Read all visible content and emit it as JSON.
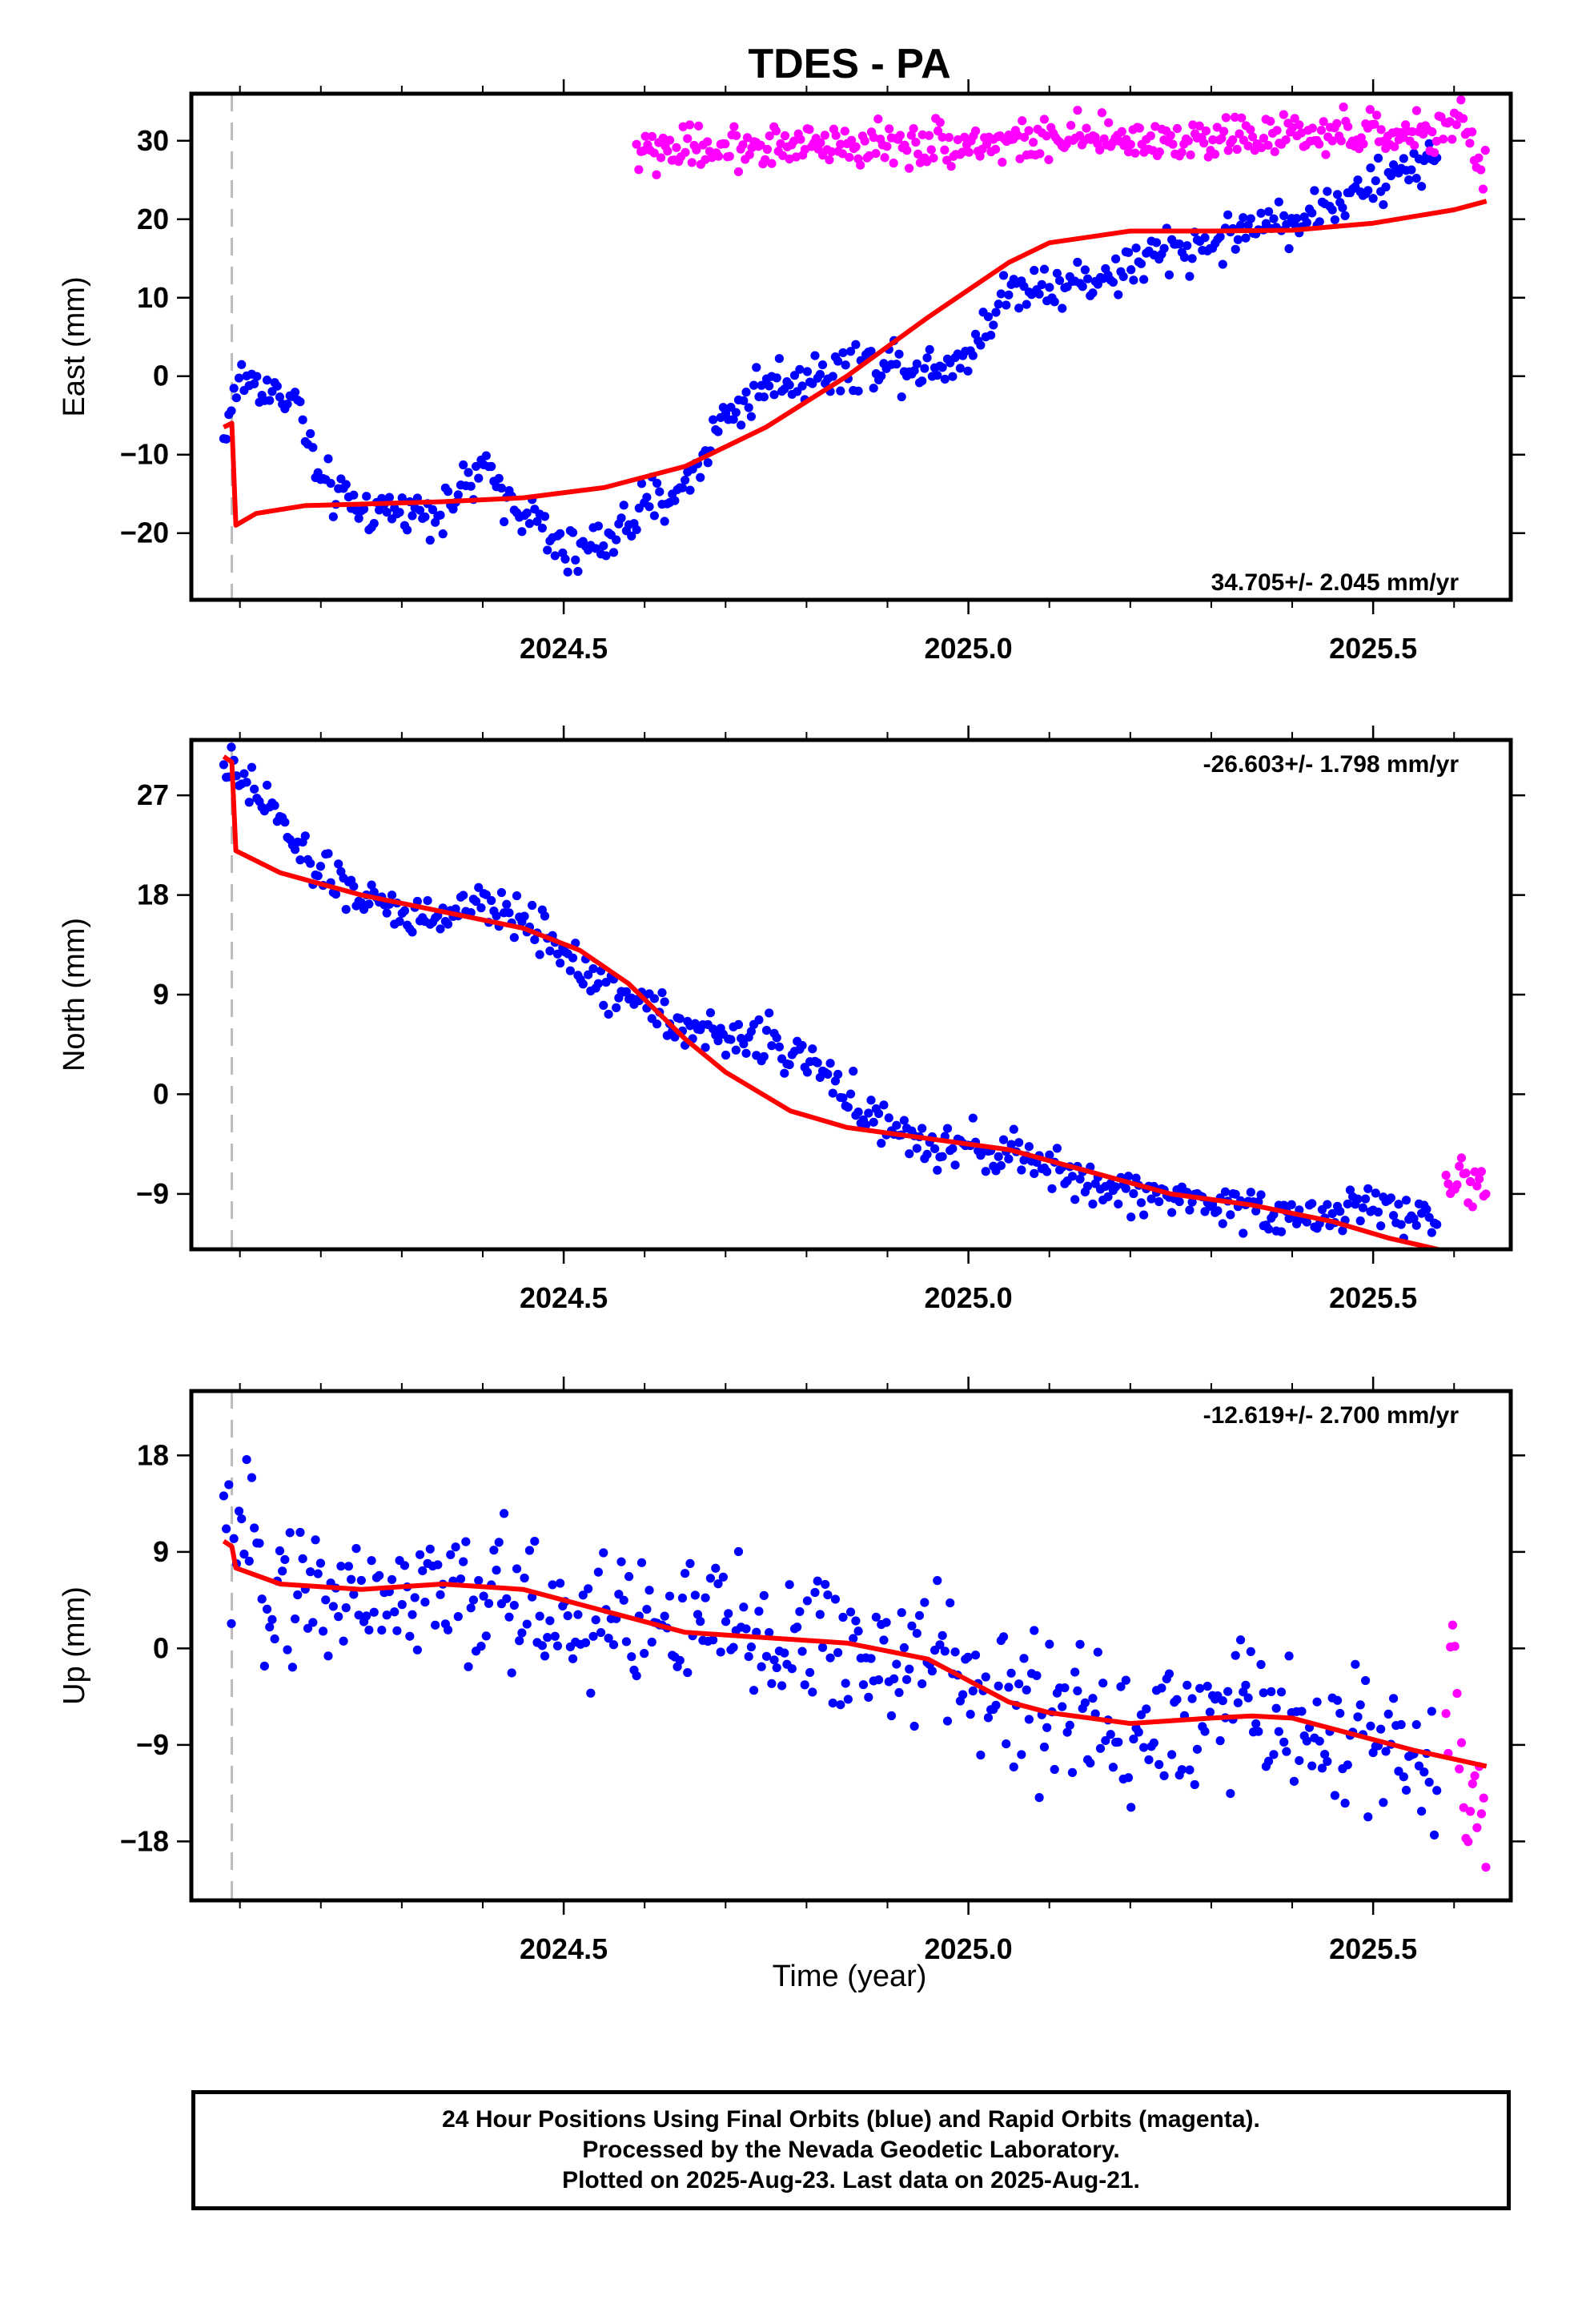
{
  "title": "TDES - PA",
  "xlabel": "Time (year)",
  "colors": {
    "final_orbits": "#0000ff",
    "rapid_orbits": "#ff00ff",
    "model": "#ff0000",
    "dashed_marker": "#bbbbbb",
    "frame": "#000000"
  },
  "caption": {
    "line1": "24 Hour Positions Using Final Orbits (blue) and Rapid Orbits (magenta).",
    "line2": "Processed by the Nevada Geodetic Laboratory.",
    "line3": "Plotted on 2025-Aug-23. Last data on 2025-Aug-21."
  },
  "chart_data": [
    {
      "type": "scatter",
      "component": "East",
      "ylabel": "East (mm)",
      "velocity": "34.705+/- 2.045 mm/yr",
      "velocity_position": "bottom-right",
      "xlim": [
        2024.04,
        2025.67
      ],
      "ylim": [
        -28.5,
        36
      ],
      "xticks": [
        2024.5,
        2025.0,
        2025.5
      ],
      "xtick_labels": [
        "2024.5",
        "2025.0",
        "2025.5"
      ],
      "yticks": [
        30,
        20,
        10,
        0,
        -10,
        -20
      ],
      "ytick_labels": [
        "30",
        "20",
        "10",
        "0",
        "−10",
        "−20"
      ],
      "offset_marker_x": 2024.09,
      "final_orbits_trend": {
        "x": [
          2024.08,
          2024.1,
          2024.14,
          2024.17,
          2024.2,
          2024.25,
          2024.3,
          2024.35,
          2024.4,
          2024.43,
          2024.47,
          2024.5,
          2024.55,
          2024.6,
          2024.65,
          2024.7,
          2024.75,
          2024.8,
          2024.85,
          2024.9,
          2024.95,
          2025.0,
          2025.05,
          2025.1,
          2025.15,
          2025.2,
          2025.25,
          2025.3,
          2025.35,
          2025.4,
          2025.45,
          2025.5,
          2025.55,
          2025.58
        ],
        "y": [
          -8,
          0,
          -2,
          -3,
          -14,
          -17,
          -17,
          -17,
          -12,
          -15,
          -19,
          -23,
          -21,
          -17,
          -14,
          -5,
          -1,
          0,
          1,
          2,
          1,
          3,
          11,
          12,
          12,
          14,
          16,
          17,
          19,
          20,
          22,
          24,
          27,
          27
        ]
      },
      "rapid_orbits_trend": {
        "x": [
          2024.59,
          2025.6,
          2025.61,
          2025.62,
          2025.63,
          2025.64
        ],
        "y": [
          29,
          31,
          33,
          30,
          27,
          26
        ]
      },
      "model": {
        "x": [
          2024.08,
          2024.09,
          2024.095,
          2024.12,
          2024.18,
          2024.25,
          2024.35,
          2024.45,
          2024.55,
          2024.65,
          2024.75,
          2024.85,
          2024.95,
          2025.05,
          2025.1,
          2025.2,
          2025.3,
          2025.4,
          2025.5,
          2025.6,
          2025.64
        ],
        "y": [
          -6.5,
          -6,
          -19,
          -17.5,
          -16.5,
          -16.3,
          -16,
          -15.5,
          -14.2,
          -11.5,
          -6.5,
          0,
          7.5,
          14.5,
          17,
          18.5,
          18.5,
          18.6,
          19.5,
          21.2,
          22.3
        ]
      }
    },
    {
      "type": "scatter",
      "component": "North",
      "ylabel": "North (mm)",
      "velocity": "-26.603+/- 1.798 mm/yr",
      "velocity_position": "top-right",
      "xlim": [
        2024.04,
        2025.67
      ],
      "ylim": [
        -14,
        32
      ],
      "xticks": [
        2024.5,
        2025.0,
        2025.5
      ],
      "xtick_labels": [
        "2024.5",
        "2025.0",
        "2025.5"
      ],
      "yticks": [
        27,
        18,
        9,
        0,
        -9
      ],
      "ytick_labels": [
        "27",
        "18",
        "9",
        "0",
        "−9"
      ],
      "offset_marker_x": 2024.09,
      "final_orbits_trend": {
        "x": [
          2024.08,
          2024.1,
          2024.14,
          2024.17,
          2024.2,
          2024.25,
          2024.3,
          2024.35,
          2024.4,
          2024.45,
          2024.5,
          2024.55,
          2024.6,
          2024.65,
          2024.7,
          2024.75,
          2024.8,
          2024.85,
          2024.9,
          2024.95,
          2025.0,
          2025.05,
          2025.1,
          2025.15,
          2025.2,
          2025.25,
          2025.3,
          2025.35,
          2025.4,
          2025.45,
          2025.5,
          2025.55,
          2025.58
        ],
        "y": [
          30,
          28,
          26,
          22,
          20,
          18,
          16,
          16,
          17,
          16,
          13,
          9,
          9,
          6,
          5,
          5,
          3,
          0,
          -3,
          -5,
          -5,
          -5,
          -7,
          -8,
          -9,
          -9,
          -10,
          -10,
          -11,
          -11,
          -10,
          -11,
          -11
        ]
      },
      "rapid_orbits_trend": {
        "x": [
          2025.59,
          2025.6,
          2025.61,
          2025.62,
          2025.63,
          2025.64
        ],
        "y": [
          -7,
          -8,
          -8,
          -9,
          -7,
          -9
        ]
      },
      "model": {
        "x": [
          2024.08,
          2024.09,
          2024.095,
          2024.15,
          2024.25,
          2024.35,
          2024.45,
          2024.52,
          2024.58,
          2024.65,
          2024.7,
          2024.78,
          2024.85,
          2024.95,
          2025.05,
          2025.15,
          2025.25,
          2025.35,
          2025.45,
          2025.52,
          2025.58
        ],
        "y": [
          30.5,
          30,
          22,
          20,
          18,
          16.5,
          15,
          13,
          10,
          5,
          2,
          -1.5,
          -3,
          -4,
          -5,
          -7,
          -9,
          -10,
          -11.5,
          -13,
          -14
        ]
      }
    },
    {
      "type": "scatter",
      "component": "Up",
      "ylabel": "Up (mm)",
      "velocity": "-12.619+/- 2.700 mm/yr",
      "velocity_position": "top-right",
      "xlim": [
        2024.04,
        2025.67
      ],
      "ylim": [
        -23.5,
        24
      ],
      "xticks": [
        2024.5,
        2025.0,
        2025.5
      ],
      "xtick_labels": [
        "2024.5",
        "2025.0",
        "2025.5"
      ],
      "yticks": [
        18,
        9,
        0,
        -9,
        -18
      ],
      "ytick_labels": [
        "18",
        "9",
        "0",
        "−9",
        "−18"
      ],
      "offset_marker_x": 2024.09,
      "final_orbits_trend": {
        "x": [
          2024.08,
          2024.15,
          2024.25,
          2024.35,
          2024.45,
          2024.55,
          2024.65,
          2024.75,
          2024.85,
          2024.95,
          2025.05,
          2025.15,
          2025.25,
          2025.35,
          2025.45,
          2025.55,
          2025.58
        ],
        "y": [
          10,
          6,
          5,
          5,
          4,
          3,
          2,
          1,
          0,
          -1,
          -5,
          -7,
          -7,
          -6,
          -8,
          -11,
          -12
        ]
      },
      "rapid_orbits_trend": {
        "x": [
          2025.59,
          2025.6,
          2025.61,
          2025.62,
          2025.63,
          2025.64
        ],
        "y": [
          -8,
          4,
          -12,
          -15,
          -10,
          -20
        ]
      },
      "model": {
        "x": [
          2024.08,
          2024.09,
          2024.095,
          2024.15,
          2024.25,
          2024.35,
          2024.45,
          2024.55,
          2024.65,
          2024.75,
          2024.85,
          2024.95,
          2025.0,
          2025.05,
          2025.1,
          2025.15,
          2025.2,
          2025.3,
          2025.35,
          2025.4,
          2025.45,
          2025.55,
          2025.64
        ],
        "y": [
          10,
          9.5,
          7.5,
          6,
          5.5,
          6,
          5.5,
          3.5,
          1.5,
          1,
          0.5,
          -1,
          -3,
          -5,
          -6,
          -6.5,
          -7,
          -6.5,
          -6.3,
          -6.5,
          -7.5,
          -9.5,
          -11
        ]
      }
    }
  ]
}
